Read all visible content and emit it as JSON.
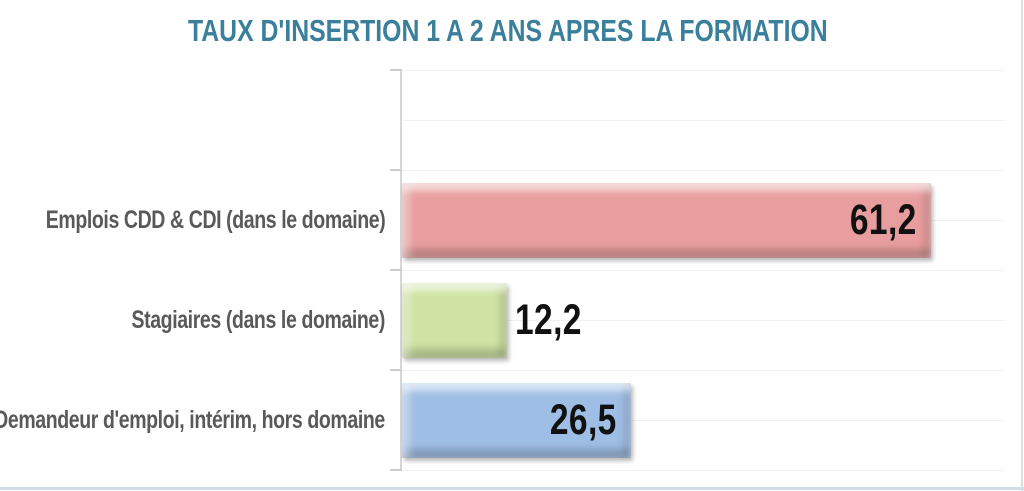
{
  "chart": {
    "title_color": "#3a7f9b",
    "label_color": "#595959",
    "value_color": "#111111",
    "axis_color": "#d6d6d6",
    "gridline_color": "#f1f1f1"
  },
  "chart_data": {
    "type": "bar",
    "orientation": "horizontal",
    "title": "TAUX D'INSERTION 1 A 2 ANS APRES LA FORMATION",
    "categories": [
      "Emplois CDD & CDI (dans le domaine)",
      "Stagiaires (dans le domaine)",
      "Demandeur d'emploi, intérim, hors domaine"
    ],
    "values": [
      61.2,
      12.2,
      26.5
    ],
    "value_labels": [
      "61,2",
      "12,2",
      "26,5"
    ],
    "bar_colors": [
      "#e89e9e",
      "#cfe3a3",
      "#9fbee5"
    ],
    "xlabel": "",
    "ylabel": "",
    "xlim": [
      0,
      70
    ],
    "grid": true,
    "legend": "none"
  }
}
